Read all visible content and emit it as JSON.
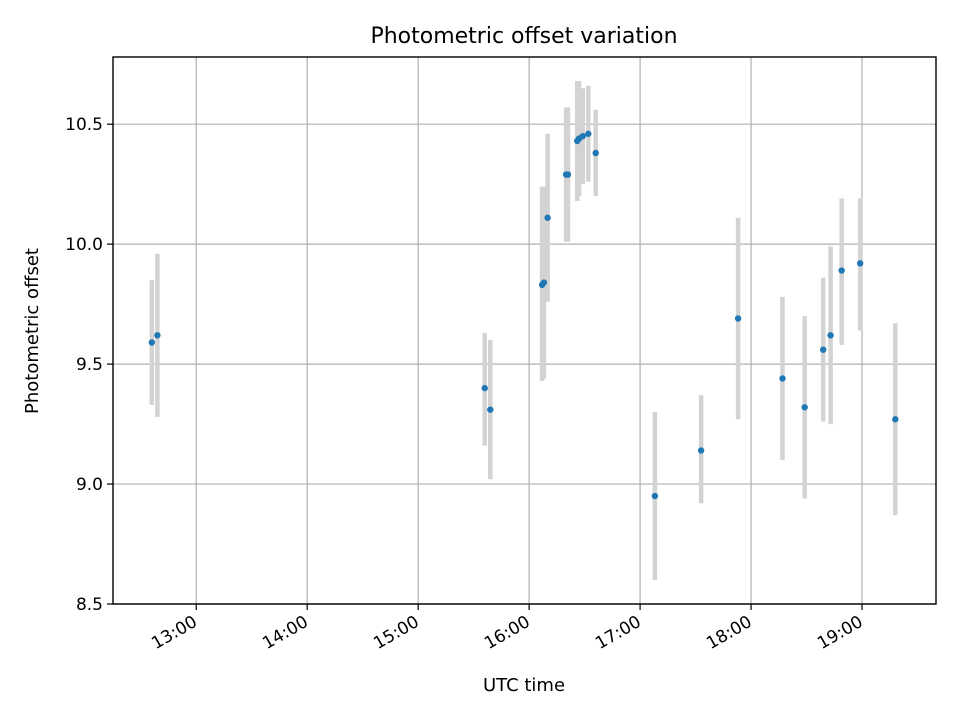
{
  "chart_data": {
    "type": "scatter",
    "title": "Photometric offset variation",
    "xlabel": "UTC time",
    "ylabel": "Photometric offset",
    "xlim": [
      "12:15",
      "19:40"
    ],
    "ylim": [
      8.5,
      10.78
    ],
    "xticks": [
      "13:00",
      "14:00",
      "15:00",
      "16:00",
      "17:00",
      "18:00",
      "19:00"
    ],
    "yticks": [
      "8.5",
      "9.0",
      "9.5",
      "10.0",
      "10.5"
    ],
    "grid": true,
    "colors": {
      "point": "#1f77b4",
      "errorbar": "#d3d3d3"
    },
    "series": [
      {
        "points": [
          {
            "x": "12:36",
            "y": 9.59,
            "low": 9.33,
            "high": 9.85
          },
          {
            "x": "12:39",
            "y": 9.62,
            "low": 9.28,
            "high": 9.96
          },
          {
            "x": "15:36",
            "y": 9.4,
            "low": 9.16,
            "high": 9.63
          },
          {
            "x": "15:39",
            "y": 9.31,
            "low": 9.02,
            "high": 9.6
          },
          {
            "x": "16:07",
            "y": 9.83,
            "low": 9.43,
            "high": 10.24
          },
          {
            "x": "16:08",
            "y": 9.84,
            "low": 9.44,
            "high": 10.24
          },
          {
            "x": "16:10",
            "y": 10.11,
            "low": 9.76,
            "high": 10.46
          },
          {
            "x": "16:20",
            "y": 10.29,
            "low": 10.01,
            "high": 10.57
          },
          {
            "x": "16:21",
            "y": 10.29,
            "low": 10.01,
            "high": 10.57
          },
          {
            "x": "16:26",
            "y": 10.43,
            "low": 10.18,
            "high": 10.68
          },
          {
            "x": "16:27",
            "y": 10.44,
            "low": 10.2,
            "high": 10.68
          },
          {
            "x": "16:29",
            "y": 10.45,
            "low": 10.25,
            "high": 10.65
          },
          {
            "x": "16:32",
            "y": 10.46,
            "low": 10.26,
            "high": 10.66
          },
          {
            "x": "16:36",
            "y": 10.38,
            "low": 10.2,
            "high": 10.56
          },
          {
            "x": "17:08",
            "y": 8.95,
            "low": 8.6,
            "high": 9.3
          },
          {
            "x": "17:33",
            "y": 9.14,
            "low": 8.92,
            "high": 9.37
          },
          {
            "x": "17:53",
            "y": 9.69,
            "low": 9.27,
            "high": 10.11
          },
          {
            "x": "18:17",
            "y": 9.44,
            "low": 9.1,
            "high": 9.78
          },
          {
            "x": "18:29",
            "y": 9.32,
            "low": 8.94,
            "high": 9.7
          },
          {
            "x": "18:39",
            "y": 9.56,
            "low": 9.26,
            "high": 9.86
          },
          {
            "x": "18:43",
            "y": 9.62,
            "low": 9.25,
            "high": 9.99
          },
          {
            "x": "18:49",
            "y": 9.89,
            "low": 9.58,
            "high": 10.19
          },
          {
            "x": "18:59",
            "y": 9.92,
            "low": 9.64,
            "high": 10.19
          },
          {
            "x": "19:18",
            "y": 9.27,
            "low": 8.87,
            "high": 9.67
          }
        ]
      }
    ]
  }
}
